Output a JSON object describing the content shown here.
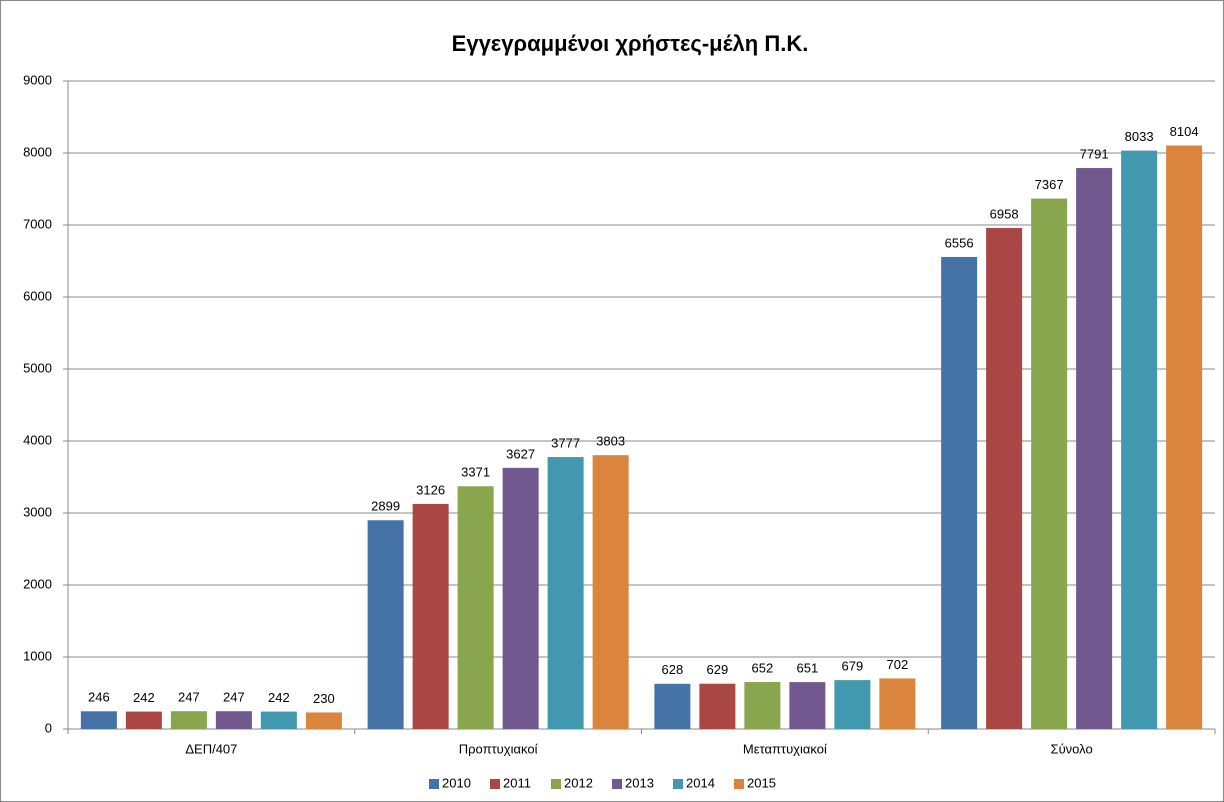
{
  "chart_data": {
    "type": "bar",
    "title": "Εγγεγραμμένοι χρήστες-μέλη Π.Κ.",
    "categories": [
      "ΔΕΠ/407",
      "Προπτυχιακοί",
      "Μεταπτυχιακοί",
      "Σύνολο"
    ],
    "series": [
      {
        "name": "2010",
        "color": "#4572a7",
        "values": [
          246,
          2899,
          628,
          6556
        ]
      },
      {
        "name": "2011",
        "color": "#aa4643",
        "values": [
          242,
          3126,
          629,
          6958
        ]
      },
      {
        "name": "2012",
        "color": "#89a54e",
        "values": [
          247,
          3371,
          652,
          7367
        ]
      },
      {
        "name": "2013",
        "color": "#71588f",
        "values": [
          247,
          3627,
          651,
          7791
        ]
      },
      {
        "name": "2014",
        "color": "#4198af",
        "values": [
          242,
          3777,
          679,
          8033
        ]
      },
      {
        "name": "2015",
        "color": "#db843d",
        "values": [
          230,
          3803,
          702,
          8104
        ]
      }
    ],
    "ylim": [
      0,
      9000
    ],
    "yticks": [
      0,
      1000,
      2000,
      3000,
      4000,
      5000,
      6000,
      7000,
      8000,
      9000
    ],
    "grid": true,
    "legend": "bottom"
  }
}
